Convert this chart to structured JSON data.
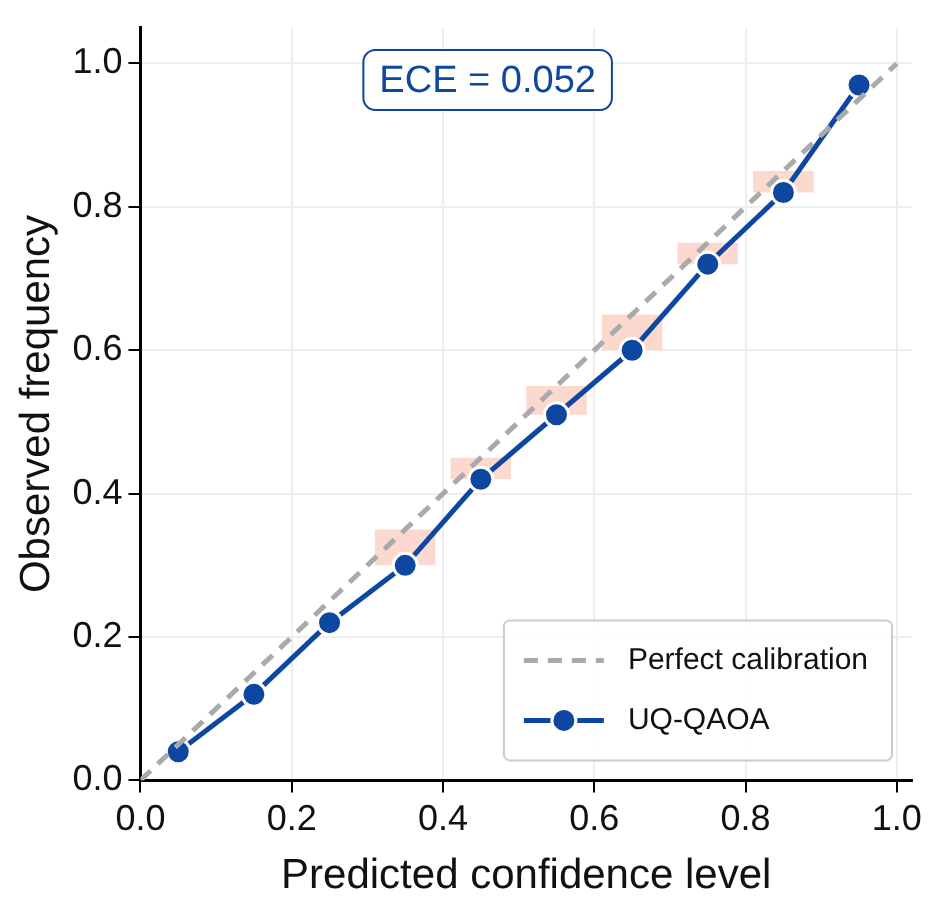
{
  "chart_data": {
    "type": "line",
    "xlabel": "Predicted confidence level",
    "ylabel": "Observed frequency",
    "xlim": [
      0,
      1.02
    ],
    "ylim": [
      0,
      1.05
    ],
    "xticks": [
      {
        "value": 0,
        "label": "0.0"
      },
      {
        "value": 0.2,
        "label": "0.2"
      },
      {
        "value": 0.4,
        "label": "0.4"
      },
      {
        "value": 0.6,
        "label": "0.6"
      },
      {
        "value": 0.8,
        "label": "0.8"
      },
      {
        "value": 1,
        "label": "1.0"
      }
    ],
    "yticks": [
      {
        "value": 0,
        "label": "0.0"
      },
      {
        "value": 0.2,
        "label": "0.2"
      },
      {
        "value": 0.4,
        "label": "0.4"
      },
      {
        "value": 0.6,
        "label": "0.6"
      },
      {
        "value": 0.8,
        "label": "0.8"
      },
      {
        "value": 1,
        "label": "1.0"
      }
    ],
    "grid": true,
    "legend": "bottom right",
    "annotations": [
      "ECE = 0.052"
    ],
    "series": [
      {
        "type": "bar",
        "color": "#fcd9cf",
        "x": [
          0.35,
          0.45,
          0.55,
          0.65,
          0.75,
          0.85
        ],
        "base": [
          0.3,
          0.42,
          0.51,
          0.6,
          0.72,
          0.82
        ],
        "values": [
          0.05,
          0.03,
          0.04,
          0.05,
          0.03,
          0.03
        ]
      },
      {
        "name": "Perfect calibration",
        "color": "#aaaaaa",
        "line_style": "dashed",
        "marker": "none",
        "x": [
          0,
          1
        ],
        "values": [
          0,
          1
        ]
      },
      {
        "name": "UQ-QAOA",
        "color": "#0d47a1",
        "line_style": "solid",
        "marker": "circle",
        "x": [
          0.05,
          0.15,
          0.25,
          0.35,
          0.45,
          0.55,
          0.65,
          0.75,
          0.85,
          0.95
        ],
        "values": [
          0.04,
          0.12,
          0.22,
          0.3,
          0.42,
          0.51,
          0.6,
          0.72,
          0.82,
          0.97
        ]
      }
    ]
  }
}
